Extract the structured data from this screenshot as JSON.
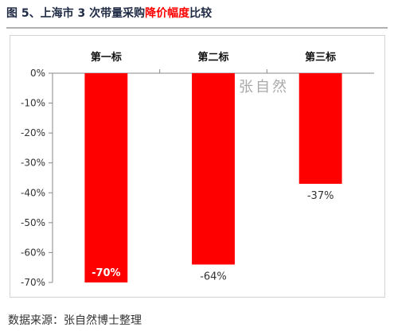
{
  "header": {
    "title_prefix": "图 5、上海市 3 次带量采购",
    "title_highlight": "降价幅度",
    "title_suffix": "比较"
  },
  "watermark": "张自然",
  "source": "数据来源：张自然博士整理",
  "chart_data": {
    "type": "bar",
    "categories": [
      "第一标",
      "第二标",
      "第三标"
    ],
    "values": [
      -70,
      -64,
      -37
    ],
    "data_labels": [
      "-70%",
      "-64%",
      "-37%"
    ],
    "ylim": [
      -70,
      0
    ],
    "yticks": [
      0,
      -10,
      -20,
      -30,
      -40,
      -50,
      -60,
      -70
    ],
    "ytick_labels": [
      "0%",
      "-10%",
      "-20%",
      "-30%",
      "-40%",
      "-50%",
      "-60%",
      "-70%"
    ],
    "xlabel": "",
    "ylabel": "",
    "grid": false,
    "category_axis_position": "top",
    "bar_color": "#ff0000"
  }
}
